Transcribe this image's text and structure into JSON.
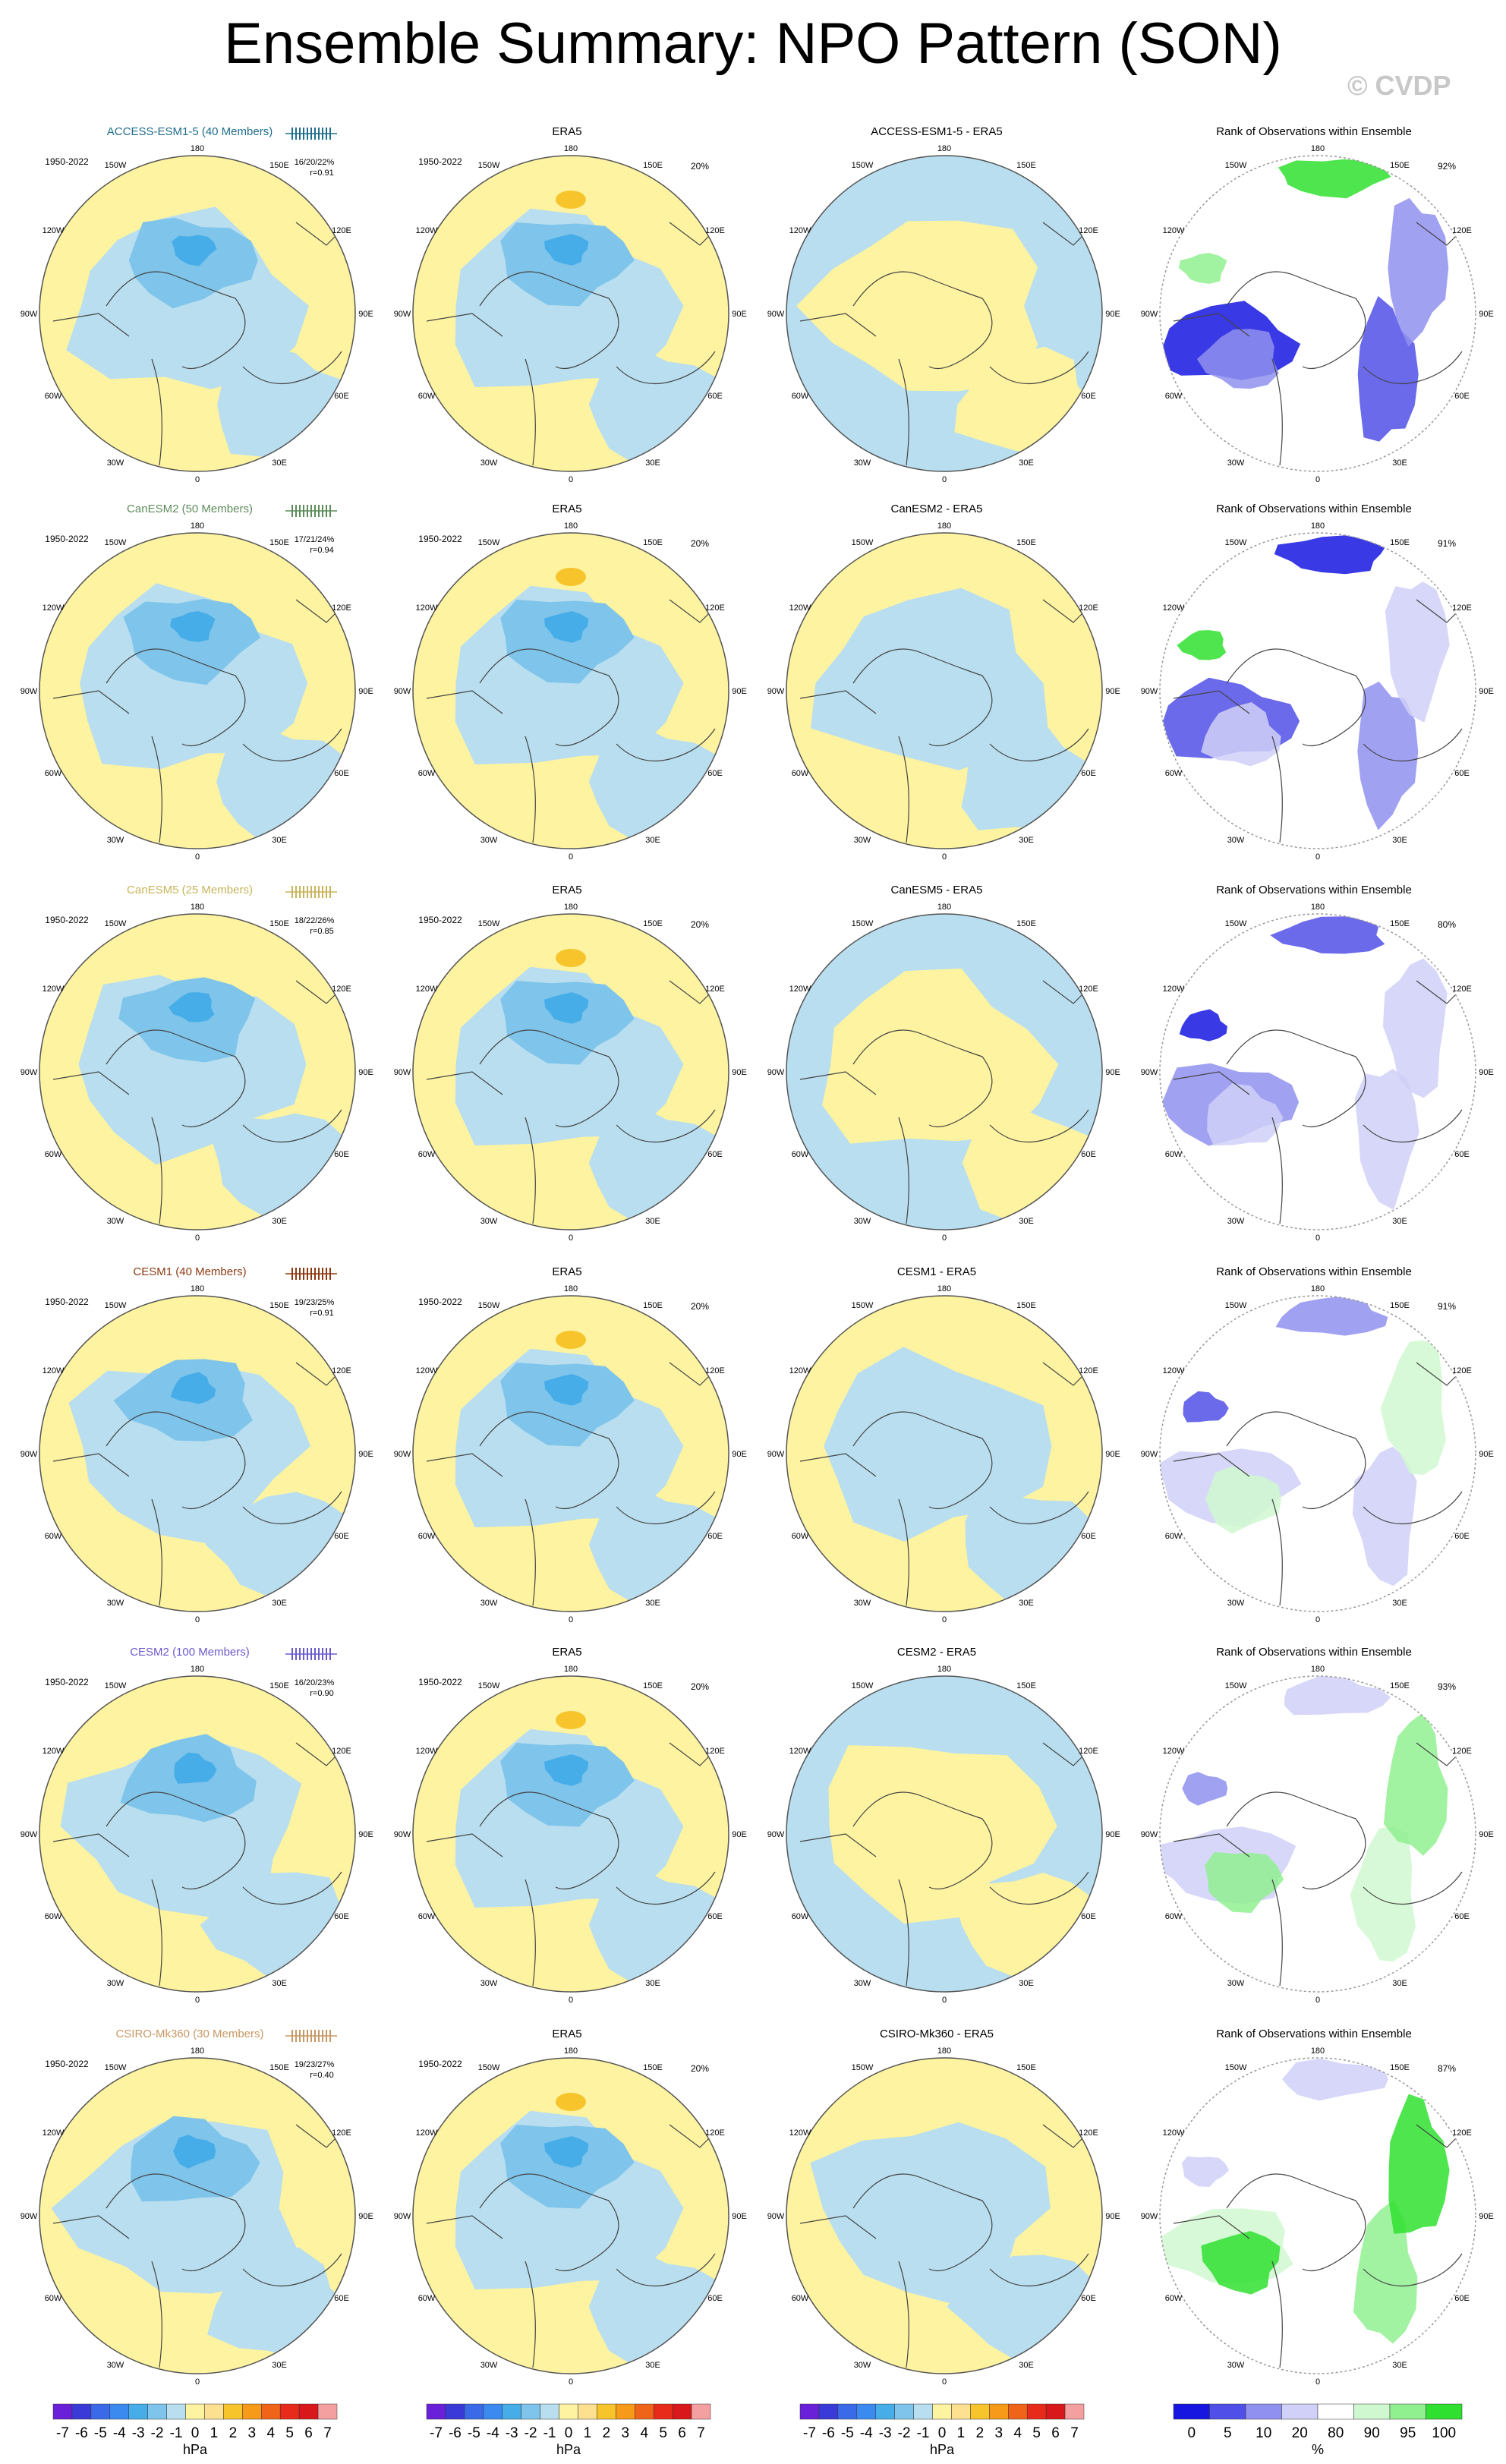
{
  "page": {
    "title": "Ensemble Summary: NPO Pattern (SON)",
    "copyright": "© CVDP"
  },
  "colors": {
    "map_positive": "#fdf3a0",
    "map_negative": "#b8def0",
    "map_neg_mid": "#7fc4ea",
    "map_neg_strong": "#46ade8",
    "map_pos_mid": "#f7c52b",
    "title_colors": {
      "ACCESS-ESM1-5": "#1f6d8c",
      "CanESM2": "#5c8c5a",
      "CanESM5": "#c8b45a",
      "CESM1": "#8b3a12",
      "CESM2": "#6a5acd",
      "CSIRO-Mk360": "#c89864"
    }
  },
  "chart_data": {
    "type": "map-panel-grid",
    "period": "1950-2022",
    "lon_labels": [
      "180",
      "150E",
      "120E",
      "90E",
      "60E",
      "30E",
      "0",
      "30W",
      "60W",
      "90W",
      "120W",
      "150W"
    ],
    "obs_panel_title": "ERA5",
    "obs_pct": "20%",
    "rank_panel_title": "Rank of Observations within Ensemble",
    "rows": [
      {
        "model": "ACCESS-ESM1-5",
        "title": "ACCESS-ESM1-5 (40 Members)",
        "pct": "16/20/22%",
        "r": "r=0.91",
        "diff_title": "ACCESS-ESM1-5 - ERA5",
        "rank_pct": "92%"
      },
      {
        "model": "CanESM2",
        "title": "CanESM2 (50 Members)",
        "pct": "17/21/24%",
        "r": "r=0.94",
        "diff_title": "CanESM2 - ERA5",
        "rank_pct": "91%"
      },
      {
        "model": "CanESM5",
        "title": "CanESM5 (25 Members)",
        "pct": "18/22/26%",
        "r": "r=0.85",
        "diff_title": "CanESM5 - ERA5",
        "rank_pct": "80%"
      },
      {
        "model": "CESM1",
        "title": "CESM1 (40 Members)",
        "pct": "19/23/25%",
        "r": "r=0.91",
        "diff_title": "CESM1 - ERA5",
        "rank_pct": "91%"
      },
      {
        "model": "CESM2",
        "title": "CESM2 (100 Members)",
        "pct": "16/20/23%",
        "r": "r=0.90",
        "diff_title": "CESM2 - ERA5",
        "rank_pct": "93%"
      },
      {
        "model": "CSIRO-Mk360",
        "title": "CSIRO-Mk360 (30 Members)",
        "pct": "19/23/27%",
        "r": "r=0.40",
        "diff_title": "CSIRO-Mk360 - ERA5",
        "rank_pct": "87%"
      }
    ],
    "hpa_colorbar": {
      "labels": [
        "-7",
        "-6",
        "-5",
        "-4",
        "-3",
        "-2",
        "-1",
        "0",
        "1",
        "2",
        "3",
        "4",
        "5",
        "6",
        "7"
      ],
      "colors": [
        "#6a1fd8",
        "#3a3ad8",
        "#3a6ae8",
        "#3a8af0",
        "#46ade8",
        "#7fc4ea",
        "#b8def0",
        "#fdf3a0",
        "#fde090",
        "#f7c52b",
        "#f79a1a",
        "#f0641a",
        "#e82a1a",
        "#d8181a",
        "#f5a0a0"
      ],
      "unit": "hPa"
    },
    "rank_colorbar": {
      "labels": [
        "0",
        "5",
        "10",
        "20",
        "80",
        "90",
        "95",
        "100"
      ],
      "colors": [
        "#1616e0",
        "#5050e8",
        "#9090f0",
        "#d0d0f8",
        "#ffffff",
        "#d0f8d0",
        "#90f090",
        "#30e030"
      ],
      "unit": "%"
    }
  }
}
